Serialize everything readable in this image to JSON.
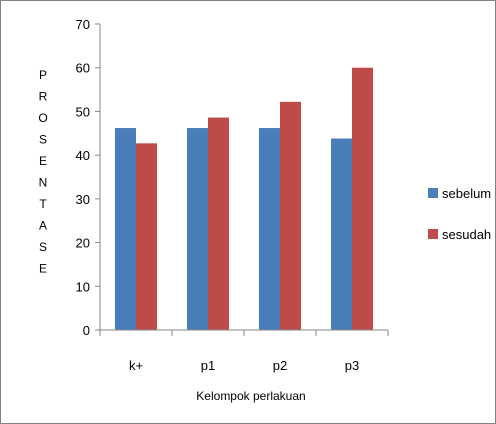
{
  "chart_data": {
    "type": "bar",
    "categories": [
      "k+",
      "p1",
      "p2",
      "p3"
    ],
    "series": [
      {
        "name": "sebelum",
        "values": [
          46.2,
          46.2,
          46.2,
          43.8
        ],
        "color": "#4a7ebb"
      },
      {
        "name": "sesudah",
        "values": [
          42.7,
          48.6,
          52.2,
          60.0
        ],
        "color": "#be4b48"
      }
    ],
    "ylabel": "PROSENTASE",
    "xlabel": "Kelompok perlakuan",
    "ylim": [
      0,
      70
    ],
    "yticks": [
      0,
      10,
      20,
      30,
      40,
      50,
      60,
      70
    ],
    "grid": false,
    "legend_position": "right"
  }
}
